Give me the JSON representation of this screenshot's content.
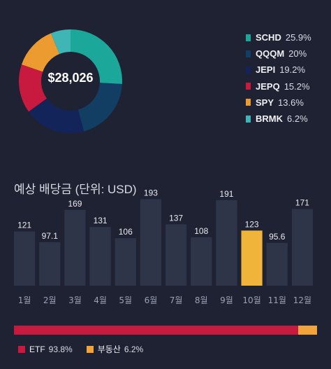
{
  "portfolio": {
    "total": "$28,026",
    "holdings": [
      {
        "name": "SCHD",
        "pct_label": "25.9%",
        "value": 25.9,
        "color": "#1ba89a"
      },
      {
        "name": "QQQM",
        "pct_label": "20%",
        "value": 20.0,
        "color": "#123e63"
      },
      {
        "name": "JEPI",
        "pct_label": "19.2%",
        "value": 19.2,
        "color": "#13245a"
      },
      {
        "name": "JEPQ",
        "pct_label": "15.2%",
        "value": 15.2,
        "color": "#c8193f"
      },
      {
        "name": "SPY",
        "pct_label": "13.6%",
        "value": 13.6,
        "color": "#ec9b31"
      },
      {
        "name": "BRMK",
        "pct_label": "6.2%",
        "value": 6.2,
        "color": "#3fb5b5"
      }
    ]
  },
  "dividends": {
    "title": "예상 배당금 (단위: USD)",
    "bar_color": "#2f3549",
    "highlight_color": "#f1b43a"
  },
  "chart_data": {
    "type": "bar",
    "title": "예상 배당금 (단위: USD)",
    "categories": [
      "1월",
      "2월",
      "3월",
      "4월",
      "5월",
      "6월",
      "7월",
      "8월",
      "9월",
      "10월",
      "11월",
      "12월"
    ],
    "values": [
      121,
      97.1,
      169,
      131,
      106,
      193,
      137,
      108,
      191,
      123,
      95.6,
      171
    ],
    "value_labels": [
      "121",
      "97.1",
      "169",
      "131",
      "106",
      "193",
      "137",
      "108",
      "191",
      "123",
      "95.6",
      "171"
    ],
    "highlight_index": 9,
    "ylim": [
      0,
      200
    ],
    "grid": false
  },
  "asset_split": {
    "items": [
      {
        "name": "ETF",
        "pct_label": "93.8%",
        "value": 93.8,
        "color": "#c8193f"
      },
      {
        "name": "부동산",
        "pct_label": "6.2%",
        "value": 6.2,
        "color": "#f2a43c"
      }
    ]
  }
}
